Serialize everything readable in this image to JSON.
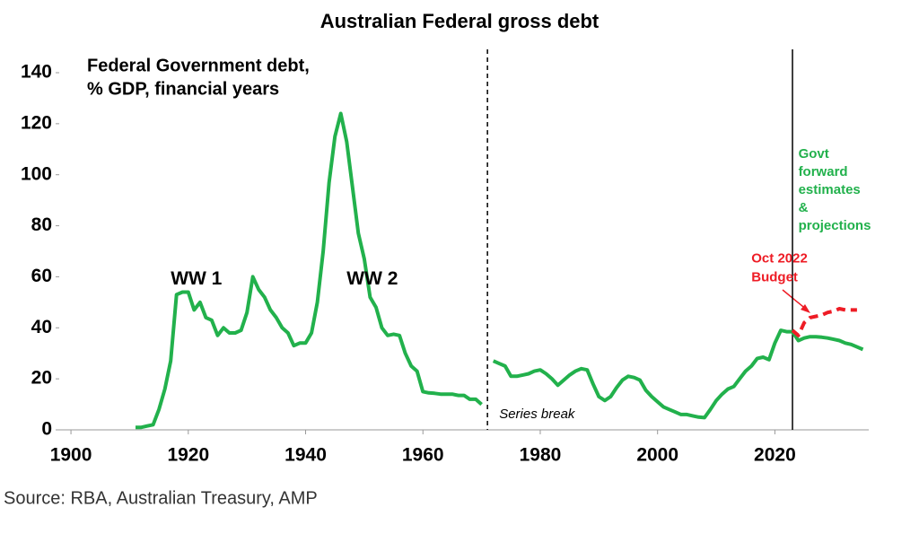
{
  "chart_data": {
    "type": "line",
    "title": "Australian Federal gross debt",
    "subtitle": [
      "Federal Government debt,",
      "% GDP, financial years"
    ],
    "source": "Source: RBA, Australian Treasury, AMP",
    "xlim": [
      1898,
      2036
    ],
    "xticks": [
      1900,
      1920,
      1940,
      1960,
      1980,
      2000,
      2020
    ],
    "ylim": [
      0,
      140
    ],
    "yticks": [
      0,
      20,
      40,
      60,
      80,
      100,
      120,
      140
    ],
    "vlines": [
      {
        "x": 1971,
        "style": "dashed"
      },
      {
        "x": 2023,
        "style": "solid"
      }
    ],
    "series": [
      {
        "color": "#22b14c",
        "dashed": false,
        "x": [
          1911,
          1912,
          1913,
          1914,
          1915,
          1916,
          1917,
          1918,
          1919,
          1920,
          1921,
          1922,
          1923,
          1924,
          1925,
          1926,
          1927,
          1928,
          1929,
          1930,
          1931,
          1932,
          1933,
          1934,
          1935,
          1936,
          1937,
          1938,
          1939,
          1940,
          1941,
          1942,
          1943,
          1944,
          1945,
          1946,
          1947,
          1948,
          1949,
          1950,
          1951,
          1952,
          1953,
          1954,
          1955,
          1956,
          1957,
          1958,
          1959,
          1960,
          1961,
          1962,
          1963,
          1964,
          1965,
          1966,
          1967,
          1968,
          1969,
          1970
        ],
        "values": [
          1,
          1,
          1.5,
          2,
          8,
          16,
          27,
          53,
          54,
          54,
          47,
          50,
          44,
          43,
          37,
          40,
          38,
          38,
          39,
          46,
          60,
          55,
          52,
          47,
          44,
          40,
          38,
          33,
          34,
          34,
          38,
          50,
          70,
          97,
          115,
          124,
          113,
          95,
          77,
          67,
          52,
          48,
          40,
          37,
          37.5,
          37,
          30,
          25,
          23,
          15,
          14.5,
          14.3,
          14,
          14,
          14,
          13.5,
          13.5,
          12,
          12,
          10
        ]
      },
      {
        "color": "#22b14c",
        "dashed": false,
        "x": [
          1972,
          1973,
          1974,
          1975,
          1976,
          1977,
          1978,
          1979,
          1980,
          1981,
          1982,
          1983,
          1984,
          1985,
          1986,
          1987,
          1988,
          1989,
          1990,
          1991,
          1992,
          1993,
          1994,
          1995,
          1996,
          1997,
          1998,
          1999,
          2000,
          2001,
          2002,
          2003,
          2004,
          2005,
          2006,
          2007,
          2008,
          2009,
          2010,
          2011,
          2012,
          2013,
          2014,
          2015,
          2016,
          2017,
          2018,
          2019,
          2020,
          2021,
          2022,
          2023
        ],
        "values": [
          27,
          26,
          25,
          21,
          21,
          21.5,
          22,
          23,
          23.5,
          22,
          20,
          17.5,
          19.5,
          21.5,
          23,
          24,
          23.5,
          18,
          13,
          11.5,
          13,
          16.5,
          19.5,
          21,
          20.5,
          19.5,
          15.5,
          13,
          11,
          9,
          8,
          7,
          6,
          6,
          5.5,
          5,
          4.8,
          8,
          11.5,
          14,
          16,
          17,
          20,
          23,
          25,
          28,
          28.5,
          27.5,
          34,
          39,
          38.5,
          38.5
        ]
      },
      {
        "color": "#22b14c",
        "dashed": false,
        "x": [
          2023,
          2024,
          2025,
          2026,
          2027,
          2028,
          2029,
          2030,
          2031,
          2032,
          2033,
          2034,
          2035
        ],
        "values": [
          38.5,
          35,
          36,
          36.5,
          36.5,
          36.3,
          36,
          35.5,
          35,
          34,
          33.5,
          32.5,
          31.5
        ]
      },
      {
        "color": "#ee1c25",
        "dashed": true,
        "x": [
          2023,
          2024,
          2025,
          2026,
          2027,
          2028,
          2029,
          2030,
          2031,
          2032,
          2033,
          2034
        ],
        "values": [
          39,
          37,
          42,
          44,
          44.5,
          45,
          46,
          46.5,
          47.5,
          47,
          47,
          47
        ]
      }
    ],
    "annotations": [
      {
        "lines": [
          "WW 1"
        ],
        "color": "#000000",
        "x": 1917,
        "y": 59
      },
      {
        "lines": [
          "WW 2"
        ],
        "color": "#000000",
        "x": 1947,
        "y": 59
      },
      {
        "lines": [
          "Series break"
        ],
        "color": "#000000",
        "x": 1973,
        "y": 6
      },
      {
        "lines": [
          "Oct 2022",
          "Budget"
        ],
        "color": "#ee1c25",
        "x": 2016,
        "y": 67
      },
      {
        "lines": [
          "Govt",
          "forward",
          "estimates",
          "&",
          "projections"
        ],
        "color": "#22b14c",
        "x": 2024,
        "y": 108
      }
    ]
  }
}
